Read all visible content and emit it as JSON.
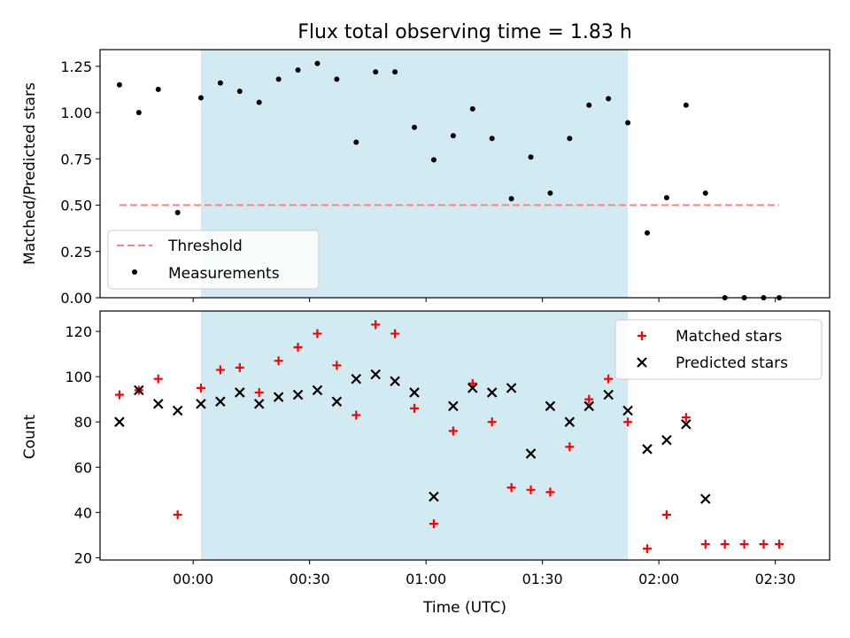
{
  "figure": {
    "title": "Flux total observing time = 1.83 h",
    "xlabel": "Time (UTC)"
  },
  "colors": {
    "shade": "#add8e6",
    "threshold": "#ff7f7f",
    "matched": "#ff0000",
    "predicted": "#000000",
    "measurement": "#000000"
  },
  "chart_data": [
    {
      "type": "scatter",
      "ylabel": "Matched/Predicted stars",
      "ylim": [
        0,
        1.34
      ],
      "yticks": [
        "0.00",
        "0.25",
        "0.50",
        "0.75",
        "1.00",
        "1.25"
      ],
      "xlim": [
        "23:36",
        "02:44"
      ],
      "xticks": [
        "00:00",
        "00:30",
        "01:00",
        "01:30",
        "02:00",
        "02:30"
      ],
      "shaded_span": [
        "00:02",
        "01:52"
      ],
      "legend": {
        "position": "lower-left",
        "entries": [
          "Threshold",
          "Measurements"
        ]
      },
      "threshold": {
        "name": "Threshold",
        "value": 0.5,
        "x": [
          "23:41",
          "02:31"
        ]
      },
      "series": [
        {
          "name": "Measurements",
          "x": [
            "23:41",
            "23:46",
            "23:51",
            "23:56",
            "00:02",
            "00:07",
            "00:12",
            "00:17",
            "00:22",
            "00:27",
            "00:32",
            "00:37",
            "00:42",
            "00:47",
            "00:52",
            "00:57",
            "01:02",
            "01:07",
            "01:12",
            "01:17",
            "01:22",
            "01:27",
            "01:32",
            "01:37",
            "01:42",
            "01:47",
            "01:52",
            "01:57",
            "02:02",
            "02:07",
            "02:12",
            "02:17",
            "02:22",
            "02:27",
            "02:31"
          ],
          "y": [
            1.15,
            1.0,
            1.125,
            0.46,
            1.08,
            1.16,
            1.115,
            1.055,
            1.18,
            1.23,
            1.265,
            1.18,
            0.84,
            1.22,
            1.22,
            0.92,
            0.745,
            0.875,
            1.02,
            0.86,
            0.535,
            0.76,
            0.565,
            0.86,
            1.04,
            1.075,
            0.945,
            0.35,
            0.54,
            1.04,
            0.565,
            0.0,
            0.0,
            0.0,
            0.0
          ]
        }
      ]
    },
    {
      "type": "scatter",
      "ylabel": "Count",
      "ylim": [
        19,
        129
      ],
      "yticks": [
        "20",
        "40",
        "60",
        "80",
        "100",
        "120"
      ],
      "xlim": [
        "23:36",
        "02:44"
      ],
      "xticks": [
        "00:00",
        "00:30",
        "01:00",
        "01:30",
        "02:00",
        "02:30"
      ],
      "shaded_span": [
        "00:02",
        "01:52"
      ],
      "legend": {
        "position": "top-right",
        "entries": [
          "Matched stars",
          "Predicted stars"
        ]
      },
      "series": [
        {
          "name": "Matched stars",
          "marker": "+",
          "x": [
            "23:41",
            "23:46",
            "23:51",
            "23:56",
            "00:02",
            "00:07",
            "00:12",
            "00:17",
            "00:22",
            "00:27",
            "00:32",
            "00:37",
            "00:42",
            "00:47",
            "00:52",
            "00:57",
            "01:02",
            "01:07",
            "01:12",
            "01:17",
            "01:22",
            "01:27",
            "01:32",
            "01:37",
            "01:42",
            "01:47",
            "01:52",
            "01:57",
            "02:02",
            "02:07",
            "02:12",
            "02:17",
            "02:22",
            "02:27",
            "02:31"
          ],
          "y": [
            92,
            94,
            99,
            39,
            95,
            103,
            104,
            93,
            107,
            113,
            119,
            105,
            83,
            123,
            119,
            86,
            35,
            76,
            97,
            80,
            51,
            50,
            49,
            69,
            90,
            99,
            80,
            24,
            39,
            82,
            26,
            26,
            26,
            26,
            26
          ]
        },
        {
          "name": "Predicted stars",
          "marker": "x",
          "x": [
            "23:41",
            "23:46",
            "23:51",
            "23:56",
            "00:02",
            "00:07",
            "00:12",
            "00:17",
            "00:22",
            "00:27",
            "00:32",
            "00:37",
            "00:42",
            "00:47",
            "00:52",
            "00:57",
            "01:02",
            "01:07",
            "01:12",
            "01:17",
            "01:22",
            "01:27",
            "01:32",
            "01:37",
            "01:42",
            "01:47",
            "01:52",
            "01:57",
            "02:02",
            "02:07",
            "02:12"
          ],
          "y": [
            80,
            94,
            88,
            85,
            88,
            89,
            93,
            88,
            91,
            92,
            94,
            89,
            99,
            101,
            98,
            93,
            47,
            87,
            95,
            93,
            95,
            66,
            87,
            80,
            87,
            92,
            85,
            68,
            72,
            79,
            46
          ]
        }
      ]
    }
  ]
}
